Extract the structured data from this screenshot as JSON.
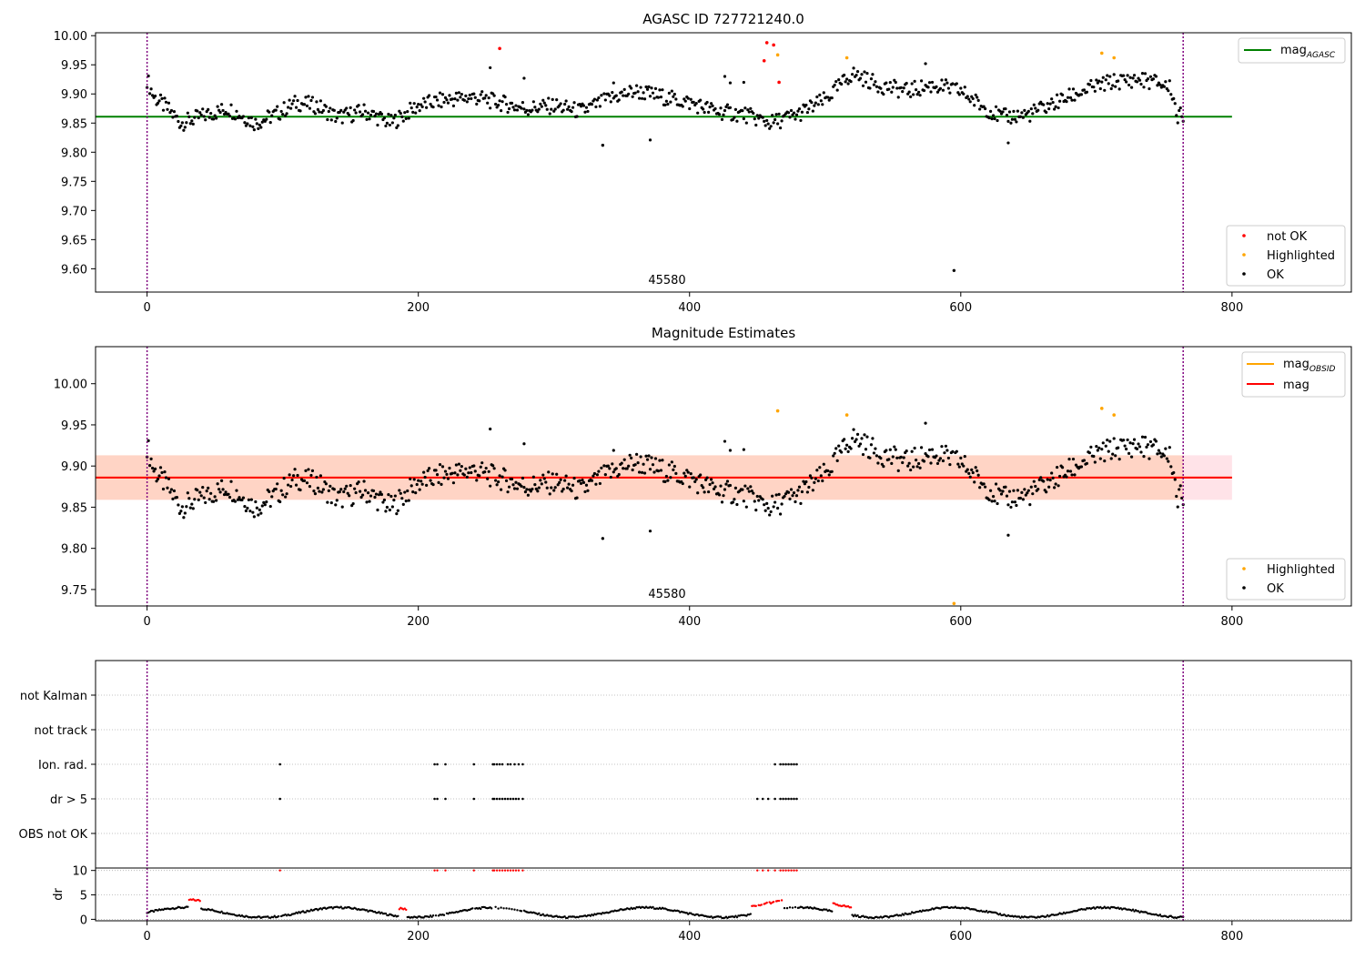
{
  "colors": {
    "ok": "#000000",
    "not_ok": "#ff0000",
    "highlighted": "#ffa500",
    "mag_agasc": "#008000",
    "mag_obsid": "#ffa500",
    "mag": "#ff0000",
    "obsid_vline": "#800080",
    "band_outer": "#ffc0cb",
    "band_inner": "#ffc8a8"
  },
  "chart_data": [
    {
      "type": "scatter",
      "title": "AGASC ID 727721240.0",
      "xlim": [
        -38,
        888
      ],
      "ylim": [
        9.56,
        10.005
      ],
      "xticks": [
        "0",
        "200",
        "400",
        "600",
        "800"
      ],
      "yticks": [
        "9.60",
        "9.65",
        "9.70",
        "9.75",
        "9.80",
        "9.85",
        "9.90",
        "9.95",
        "10.00"
      ],
      "obsid_label": "45580",
      "obsid_bounds": [
        0,
        764
      ],
      "lines": [
        {
          "name": "mag_AGASC",
          "y": 9.861,
          "x": [
            -38,
            800
          ]
        }
      ],
      "series": [
        {
          "name": "not OK",
          "x": [
            260,
            455,
            457,
            462,
            466
          ],
          "y": [
            9.978,
            9.957,
            9.988,
            9.984,
            9.92
          ]
        },
        {
          "name": "Highlighted",
          "x": [
            465,
            516,
            704,
            713
          ],
          "y": [
            9.967,
            9.962,
            9.97,
            9.962
          ]
        },
        {
          "name": "OK",
          "note": "dense band of ~760 samples; outliers:",
          "x": [
            253,
            278,
            336,
            344,
            371,
            426,
            430,
            440,
            574,
            595,
            635
          ],
          "y": [
            9.945,
            9.927,
            9.812,
            9.919,
            9.821,
            9.93,
            9.919,
            9.92,
            9.952,
            9.597,
            9.816
          ]
        }
      ],
      "legends": [
        {
          "position": "upper right",
          "entries": [
            "mag_AGASC"
          ]
        },
        {
          "position": "lower right",
          "entries": [
            "not OK",
            "Highlighted",
            "OK"
          ]
        }
      ]
    },
    {
      "type": "scatter",
      "title": "Magnitude Estimates",
      "xlim": [
        -38,
        888
      ],
      "ylim": [
        9.73,
        10.045
      ],
      "xticks": [
        "0",
        "200",
        "400",
        "600",
        "800"
      ],
      "yticks": [
        "9.75",
        "9.80",
        "9.85",
        "9.90",
        "9.95",
        "10.00"
      ],
      "obsid_label": "45580",
      "lines": [
        {
          "name": "mag_OBSID",
          "y": 9.886,
          "x": [
            -38,
            800
          ]
        },
        {
          "name": "mag",
          "y": 9.886,
          "x": [
            -38,
            800
          ]
        }
      ],
      "bands": [
        {
          "name": "mag range",
          "y": [
            9.859,
            9.913
          ],
          "x": [
            -38,
            800
          ]
        },
        {
          "name": "mag_OBSID range",
          "y": [
            9.859,
            9.913
          ],
          "x": [
            -38,
            764
          ]
        }
      ],
      "series": [
        {
          "name": "Highlighted",
          "x": [
            465,
            516,
            595,
            704,
            713
          ],
          "y": [
            9.967,
            9.962,
            9.733,
            9.97,
            9.962
          ]
        },
        {
          "name": "OK",
          "note": "same samples as panel 1 without not-OK points"
        }
      ],
      "legends": [
        {
          "position": "upper right",
          "entries": [
            "mag_OBSID",
            "mag"
          ]
        },
        {
          "position": "lower right",
          "entries": [
            "Highlighted",
            "OK"
          ]
        }
      ]
    },
    {
      "type": "scatter",
      "title": "",
      "categories": [
        "not Kalman",
        "not track",
        "Ion. rad.",
        "dr > 5",
        "OBS not OK"
      ],
      "flags": {
        "ion_rad_x": [
          98,
          212,
          214,
          220,
          241,
          255,
          256,
          258,
          260,
          262,
          266,
          268,
          271,
          274,
          277,
          463,
          467,
          469,
          471,
          473,
          475,
          477,
          479
        ],
        "dr5_x": [
          98,
          212,
          214,
          220,
          241,
          255,
          256,
          258,
          260,
          262,
          264,
          266,
          268,
          270,
          272,
          274,
          277,
          450,
          454,
          458,
          463,
          467,
          469,
          471,
          473,
          475,
          477,
          479
        ]
      }
    },
    {
      "type": "scatter",
      "ylabel": "dr",
      "xlim": [
        -38,
        888
      ],
      "ylim": [
        -0.3,
        10.5
      ],
      "xticks": [
        "0",
        "200",
        "400",
        "600",
        "800"
      ],
      "yticks": [
        "0",
        "5",
        "10"
      ]
    }
  ],
  "legend_labels": {
    "mag_agasc": "mag",
    "mag_agasc_sub": "AGASC",
    "mag_obsid": "mag",
    "mag_obsid_sub": "OBSID",
    "mag": "mag",
    "not_ok": "not OK",
    "highlighted": "Highlighted",
    "ok": "OK"
  }
}
